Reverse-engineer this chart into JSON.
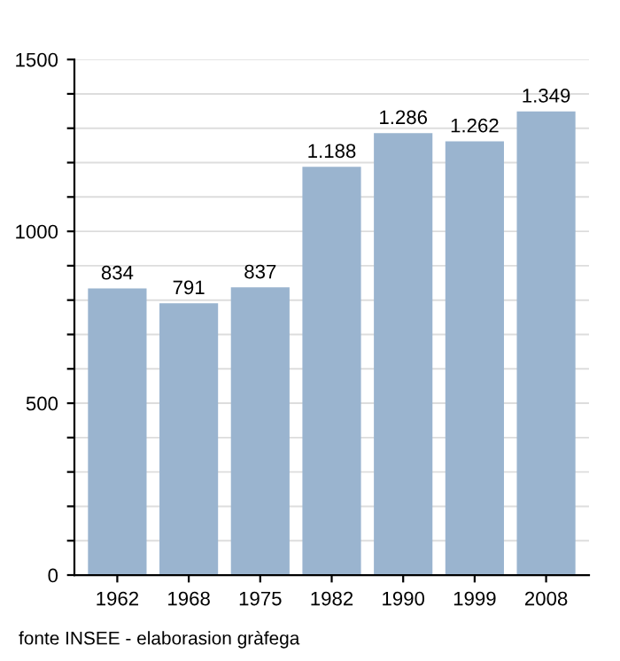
{
  "chart_data": {
    "type": "bar",
    "categories": [
      "1962",
      "1968",
      "1975",
      "1982",
      "1990",
      "1999",
      "2008"
    ],
    "values": [
      834,
      791,
      837,
      1188,
      1286,
      1262,
      1349
    ],
    "value_labels": [
      "834",
      "791",
      "837",
      "1.188",
      "1.286",
      "1.262",
      "1.349"
    ],
    "color": "#9ab4cf",
    "ylim": [
      0,
      1500
    ],
    "yticks": [
      0,
      {
        "value": 100,
        "label": null
      },
      {
        "value": 200,
        "label": null
      },
      {
        "value": 300,
        "label": null
      },
      {
        "value": 400,
        "label": null
      },
      500,
      {
        "value": 600,
        "label": null
      },
      {
        "value": 700,
        "label": null
      },
      {
        "value": 800,
        "label": null
      },
      {
        "value": 900,
        "label": null
      },
      1000,
      {
        "value": 1100,
        "label": null
      },
      {
        "value": 1200,
        "label": null
      },
      {
        "value": 1300,
        "label": null
      },
      {
        "value": 1400,
        "label": null
      },
      1500
    ],
    "grid": "y",
    "annotations": [
      "fonte INSEE - elaborasion gràfega"
    ]
  }
}
